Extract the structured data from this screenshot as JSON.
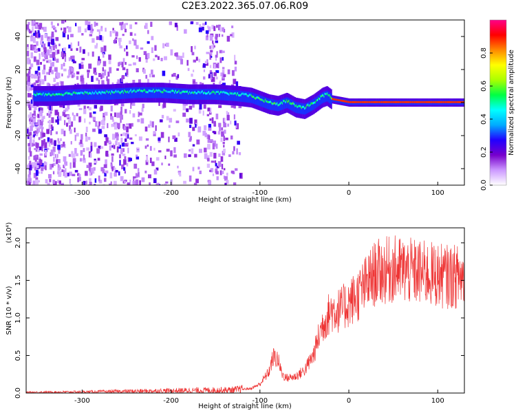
{
  "title": "C2E3.2022.365.07.06.R09",
  "chart_data": [
    {
      "type": "heatmap",
      "xlabel": "Height of straight line (km)",
      "ylabel": "Frequency (Hz)",
      "xlim": [
        -363,
        130
      ],
      "ylim": [
        -50,
        50
      ],
      "x_ticks": [
        -300,
        -200,
        -100,
        0,
        100
      ],
      "x_tick_labels": [
        "-300",
        "-200",
        "-100",
        "0",
        "100"
      ],
      "y_ticks": [
        -40,
        -20,
        0,
        20,
        40
      ],
      "y_tick_labels": [
        "-40",
        "-20",
        "0",
        "20",
        "40"
      ],
      "colorbar": {
        "label": "Normalized spectral amplitude",
        "range": [
          0,
          1
        ],
        "ticks": [
          0.0,
          0.2,
          0.4,
          0.6,
          0.8
        ],
        "tick_labels": [
          "0.0",
          "0.2",
          "0.4",
          "0.6",
          "0.8"
        ],
        "colors": [
          "#ffffff",
          "#cc99ff",
          "#7700cc",
          "#2200ff",
          "#00aaff",
          "#00ffff",
          "#00ff44",
          "#aaff00",
          "#ffff00",
          "#ff8800",
          "#ff0000",
          "#ff0088"
        ]
      },
      "ridge": {
        "height_km": [
          -355,
          -330,
          -300,
          -270,
          -240,
          -210,
          -180,
          -150,
          -125,
          -110,
          -100,
          -90,
          -80,
          -70,
          -60,
          -50,
          -40,
          -30,
          -25,
          -20,
          -10,
          0,
          20,
          50,
          80,
          110,
          130
        ],
        "frequency_hz": [
          4,
          4,
          5,
          5,
          6,
          6,
          5,
          5,
          4,
          3,
          1,
          -1,
          -2,
          0,
          -3,
          -4,
          -1,
          3,
          4,
          2,
          1,
          0,
          0,
          0,
          0,
          0,
          0
        ]
      },
      "grid": false
    },
    {
      "type": "line",
      "xlabel": "Height of straight line (km)",
      "ylabel": "SNR (10 * v/v)",
      "y_multiplier": "(x10⁴)",
      "xlim": [
        -363,
        130
      ],
      "ylim": [
        0.0,
        2.2
      ],
      "x_ticks": [
        -300,
        -200,
        -100,
        0,
        100
      ],
      "x_tick_labels": [
        "-300",
        "-200",
        "-100",
        "0",
        "100"
      ],
      "y_ticks": [
        0.0,
        0.5,
        1.0,
        1.5,
        2.0
      ],
      "y_tick_labels": [
        "0.0",
        "0.5",
        "1.0",
        "1.5",
        "2.0"
      ],
      "line_color": "#ee3333",
      "grid": false,
      "envelope": {
        "height_km": [
          -363,
          -300,
          -200,
          -130,
          -110,
          -100,
          -90,
          -85,
          -80,
          -75,
          -70,
          -60,
          -50,
          -40,
          -30,
          -20,
          -10,
          0,
          10,
          20,
          30,
          50,
          80,
          110,
          130
        ],
        "snr_x1e4": [
          0.01,
          0.015,
          0.03,
          0.04,
          0.06,
          0.12,
          0.28,
          0.48,
          0.45,
          0.25,
          0.2,
          0.22,
          0.3,
          0.5,
          0.9,
          1.1,
          1.1,
          1.2,
          1.3,
          1.45,
          1.6,
          1.65,
          1.6,
          1.55,
          1.55
        ]
      }
    }
  ]
}
